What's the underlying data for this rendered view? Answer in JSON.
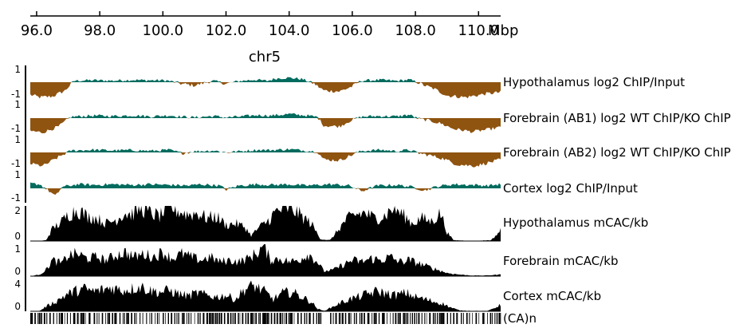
{
  "chart_data": {
    "type": "area",
    "chromosome": "chr5",
    "axis_unit": "Mbp",
    "xlim": [
      95.8,
      110.7
    ],
    "ticks": [
      {
        "value": 96.0,
        "label": "96.0"
      },
      {
        "value": 98.0,
        "label": "98.0"
      },
      {
        "value": 100.0,
        "label": "100.0"
      },
      {
        "value": 102.0,
        "label": "102.0"
      },
      {
        "value": 104.0,
        "label": "104.0"
      },
      {
        "value": 106.0,
        "label": "106.0"
      },
      {
        "value": 108.0,
        "label": "108.0"
      },
      {
        "value": 110.0,
        "label": "110.0"
      }
    ],
    "colors": {
      "positive": "#006b5e",
      "negative": "#8f5410",
      "mcac": "#000000",
      "ca": "#000000"
    },
    "log_tracks": [
      {
        "name": "Hypothalamus log2 ChIP/Input",
        "ylim": [
          -1,
          1
        ],
        "ymax_label": "1",
        "ymin_label": "-1",
        "points": [
          [
            95.8,
            -0.75
          ],
          [
            96.1,
            -0.9
          ],
          [
            96.5,
            -0.85
          ],
          [
            96.9,
            -0.5
          ],
          [
            97.2,
            0.12
          ],
          [
            97.8,
            0.15
          ],
          [
            98.4,
            0.12
          ],
          [
            99.0,
            0.18
          ],
          [
            99.5,
            0.15
          ],
          [
            100.1,
            0.14
          ],
          [
            100.6,
            -0.1
          ],
          [
            101.0,
            -0.2
          ],
          [
            101.6,
            0.1
          ],
          [
            102.0,
            -0.1
          ],
          [
            102.4,
            0.08
          ],
          [
            102.9,
            0.2
          ],
          [
            103.3,
            0.1
          ],
          [
            103.6,
            0.3
          ],
          [
            104.0,
            0.35
          ],
          [
            104.4,
            0.25
          ],
          [
            104.8,
            -0.1
          ],
          [
            105.1,
            -0.5
          ],
          [
            105.6,
            -0.55
          ],
          [
            106.0,
            -0.25
          ],
          [
            106.3,
            0.12
          ],
          [
            106.9,
            0.18
          ],
          [
            107.4,
            0.1
          ],
          [
            107.8,
            0.2
          ],
          [
            108.0,
            0.05
          ],
          [
            108.3,
            -0.2
          ],
          [
            108.6,
            -0.4
          ],
          [
            109.0,
            -0.8
          ],
          [
            109.6,
            -0.9
          ],
          [
            110.2,
            -0.7
          ],
          [
            110.7,
            -0.6
          ]
        ]
      },
      {
        "name": "Forebrain (AB1) log2 WT ChIP/KO ChIP",
        "ylim": [
          -1,
          1
        ],
        "ymax_label": "1",
        "ymin_label": "-1",
        "points": [
          [
            95.8,
            -0.85
          ],
          [
            96.2,
            -0.95
          ],
          [
            96.7,
            -0.55
          ],
          [
            97.1,
            0.1
          ],
          [
            97.8,
            0.18
          ],
          [
            98.4,
            0.15
          ],
          [
            99.1,
            0.2
          ],
          [
            99.6,
            0.12
          ],
          [
            100.2,
            0.2
          ],
          [
            100.6,
            0.1
          ],
          [
            101.0,
            0.05
          ],
          [
            101.6,
            0.15
          ],
          [
            102.0,
            0.05
          ],
          [
            102.5,
            0.12
          ],
          [
            103.0,
            0.22
          ],
          [
            103.4,
            0.18
          ],
          [
            104.0,
            0.3
          ],
          [
            104.5,
            0.2
          ],
          [
            104.9,
            0.08
          ],
          [
            105.1,
            -0.5
          ],
          [
            105.6,
            -0.55
          ],
          [
            105.9,
            -0.2
          ],
          [
            106.3,
            0.1
          ],
          [
            106.8,
            0.15
          ],
          [
            107.4,
            0.12
          ],
          [
            107.8,
            0.25
          ],
          [
            108.1,
            -0.05
          ],
          [
            108.4,
            -0.15
          ],
          [
            108.8,
            -0.35
          ],
          [
            109.2,
            -0.7
          ],
          [
            109.8,
            -0.9
          ],
          [
            110.3,
            -0.75
          ],
          [
            110.7,
            -0.6
          ]
        ]
      },
      {
        "name": "Forebrain (AB2) log2 WT ChIP/KO ChIP",
        "ylim": [
          -1,
          1
        ],
        "ymax_label": "1",
        "ymin_label": "-1",
        "points": [
          [
            95.8,
            -0.7
          ],
          [
            96.2,
            -0.85
          ],
          [
            96.6,
            -0.4
          ],
          [
            97.1,
            0.15
          ],
          [
            97.8,
            0.2
          ],
          [
            98.4,
            0.15
          ],
          [
            99.0,
            0.18
          ],
          [
            99.6,
            0.12
          ],
          [
            100.2,
            0.2
          ],
          [
            100.6,
            -0.05
          ],
          [
            101.0,
            0.08
          ],
          [
            101.6,
            0.15
          ],
          [
            102.0,
            0.0
          ],
          [
            102.5,
            0.1
          ],
          [
            103.0,
            0.2
          ],
          [
            103.4,
            0.18
          ],
          [
            104.0,
            0.25
          ],
          [
            104.5,
            0.15
          ],
          [
            104.9,
            0.05
          ],
          [
            105.1,
            -0.45
          ],
          [
            105.6,
            -0.5
          ],
          [
            106.0,
            -0.15
          ],
          [
            106.3,
            0.12
          ],
          [
            106.9,
            0.2
          ],
          [
            107.4,
            0.1
          ],
          [
            107.8,
            0.2
          ],
          [
            108.1,
            -0.05
          ],
          [
            108.5,
            -0.2
          ],
          [
            108.9,
            -0.4
          ],
          [
            109.3,
            -0.75
          ],
          [
            109.9,
            -0.85
          ],
          [
            110.4,
            -0.6
          ],
          [
            110.7,
            -0.45
          ]
        ]
      },
      {
        "name": "Cortex log2 ChIP/Input",
        "ylim": [
          -1,
          1
        ],
        "ymax_label": "1",
        "ymin_label": "-1",
        "points": [
          [
            95.8,
            0.35
          ],
          [
            96.1,
            0.3
          ],
          [
            96.4,
            -0.2
          ],
          [
            96.6,
            -0.55
          ],
          [
            96.8,
            0.1
          ],
          [
            97.3,
            0.3
          ],
          [
            97.8,
            0.25
          ],
          [
            98.4,
            0.3
          ],
          [
            99.0,
            0.25
          ],
          [
            99.6,
            0.3
          ],
          [
            100.2,
            0.25
          ],
          [
            100.8,
            0.2
          ],
          [
            101.2,
            0.3
          ],
          [
            101.8,
            0.2
          ],
          [
            102.0,
            -0.1
          ],
          [
            102.4,
            0.2
          ],
          [
            103.0,
            0.3
          ],
          [
            103.5,
            0.25
          ],
          [
            104.0,
            0.3
          ],
          [
            104.5,
            0.2
          ],
          [
            104.9,
            0.25
          ],
          [
            105.3,
            0.3
          ],
          [
            105.9,
            0.2
          ],
          [
            106.3,
            -0.2
          ],
          [
            106.8,
            0.2
          ],
          [
            107.4,
            0.25
          ],
          [
            107.9,
            0.1
          ],
          [
            108.3,
            -0.15
          ],
          [
            108.7,
            0.15
          ],
          [
            109.2,
            0.3
          ],
          [
            109.8,
            0.25
          ],
          [
            110.3,
            0.2
          ],
          [
            110.7,
            0.3
          ]
        ]
      }
    ],
    "mcac_tracks": [
      {
        "name": "Hypothalamus mCAC/kb",
        "ylim": [
          0,
          2
        ],
        "ymax_label": "2",
        "ymin_label": "0",
        "points": [
          [
            95.8,
            0.0
          ],
          [
            96.1,
            0.0
          ],
          [
            96.3,
            0.05
          ],
          [
            96.5,
            0.7
          ],
          [
            96.8,
            1.1
          ],
          [
            97.0,
            1.5
          ],
          [
            97.3,
            1.8
          ],
          [
            97.6,
            1.4
          ],
          [
            97.9,
            1.3
          ],
          [
            98.2,
            1.0
          ],
          [
            98.5,
            1.2
          ],
          [
            98.8,
            1.6
          ],
          [
            99.0,
            1.5
          ],
          [
            99.3,
            1.9
          ],
          [
            99.6,
            1.6
          ],
          [
            99.9,
            1.4
          ],
          [
            100.2,
            2.0
          ],
          [
            100.5,
            1.7
          ],
          [
            100.8,
            1.5
          ],
          [
            101.1,
            1.6
          ],
          [
            101.4,
            1.3
          ],
          [
            101.7,
            1.4
          ],
          [
            102.0,
            0.9
          ],
          [
            102.3,
            1.0
          ],
          [
            102.6,
            0.8
          ],
          [
            102.8,
            0.3
          ],
          [
            103.0,
            0.7
          ],
          [
            103.3,
            1.1
          ],
          [
            103.6,
            1.7
          ],
          [
            103.9,
            1.9
          ],
          [
            104.2,
            1.7
          ],
          [
            104.4,
            1.4
          ],
          [
            104.7,
            1.0
          ],
          [
            104.9,
            0.4
          ],
          [
            105.0,
            0.1
          ],
          [
            105.3,
            0.05
          ],
          [
            105.5,
            0.5
          ],
          [
            105.8,
            1.2
          ],
          [
            106.1,
            1.5
          ],
          [
            106.4,
            1.6
          ],
          [
            106.7,
            1.3
          ],
          [
            107.0,
            1.4
          ],
          [
            107.3,
            1.9
          ],
          [
            107.6,
            1.5
          ],
          [
            107.9,
            1.0
          ],
          [
            108.2,
            1.3
          ],
          [
            108.5,
            1.1
          ],
          [
            108.8,
            1.6
          ],
          [
            109.0,
            0.5
          ],
          [
            109.2,
            0.05
          ],
          [
            109.6,
            0.02
          ],
          [
            110.0,
            0.02
          ],
          [
            110.4,
            0.05
          ],
          [
            110.7,
            0.6
          ]
        ]
      },
      {
        "name": "Forebrain mCAC/kb",
        "ylim": [
          0,
          1
        ],
        "ymax_label": "1",
        "ymin_label": "0",
        "points": [
          [
            95.8,
            0.0
          ],
          [
            96.1,
            0.05
          ],
          [
            96.3,
            0.2
          ],
          [
            96.5,
            0.5
          ],
          [
            96.8,
            0.4
          ],
          [
            97.0,
            0.65
          ],
          [
            97.3,
            0.7
          ],
          [
            97.6,
            0.55
          ],
          [
            97.9,
            0.6
          ],
          [
            98.2,
            0.5
          ],
          [
            98.5,
            0.65
          ],
          [
            98.8,
            0.75
          ],
          [
            99.1,
            0.6
          ],
          [
            99.4,
            0.7
          ],
          [
            99.7,
            0.6
          ],
          [
            100.0,
            0.75
          ],
          [
            100.3,
            0.55
          ],
          [
            100.6,
            0.7
          ],
          [
            100.9,
            0.6
          ],
          [
            101.2,
            0.5
          ],
          [
            101.5,
            0.6
          ],
          [
            101.8,
            0.45
          ],
          [
            102.1,
            0.5
          ],
          [
            102.4,
            0.45
          ],
          [
            102.7,
            0.55
          ],
          [
            103.0,
            0.75
          ],
          [
            103.2,
            0.95
          ],
          [
            103.4,
            0.5
          ],
          [
            103.7,
            0.55
          ],
          [
            104.0,
            0.45
          ],
          [
            104.3,
            0.5
          ],
          [
            104.6,
            0.7
          ],
          [
            104.9,
            0.45
          ],
          [
            105.1,
            0.15
          ],
          [
            105.4,
            0.2
          ],
          [
            105.7,
            0.35
          ],
          [
            106.0,
            0.5
          ],
          [
            106.3,
            0.45
          ],
          [
            106.6,
            0.55
          ],
          [
            106.9,
            0.5
          ],
          [
            107.2,
            0.6
          ],
          [
            107.5,
            0.45
          ],
          [
            107.8,
            0.5
          ],
          [
            108.1,
            0.4
          ],
          [
            108.4,
            0.3
          ],
          [
            108.7,
            0.2
          ],
          [
            109.0,
            0.1
          ],
          [
            109.4,
            0.05
          ],
          [
            109.8,
            0.02
          ],
          [
            110.2,
            0.02
          ],
          [
            110.7,
            0.05
          ]
        ]
      },
      {
        "name": "Cortex mCAC/kb",
        "ylim": [
          0,
          4
        ],
        "ymax_label": "4",
        "ymin_label": "0",
        "points": [
          [
            95.8,
            0.0
          ],
          [
            96.1,
            0.05
          ],
          [
            96.3,
            0.6
          ],
          [
            96.6,
            1.2
          ],
          [
            96.9,
            2.0
          ],
          [
            97.2,
            2.5
          ],
          [
            97.5,
            2.8
          ],
          [
            97.8,
            2.5
          ],
          [
            98.1,
            2.7
          ],
          [
            98.4,
            3.0
          ],
          [
            98.7,
            2.6
          ],
          [
            99.0,
            2.8
          ],
          [
            99.3,
            3.1
          ],
          [
            99.6,
            2.6
          ],
          [
            99.9,
            2.4
          ],
          [
            100.2,
            2.6
          ],
          [
            100.5,
            2.2
          ],
          [
            100.8,
            1.9
          ],
          [
            101.1,
            2.3
          ],
          [
            101.4,
            2.0
          ],
          [
            101.7,
            1.8
          ],
          [
            102.0,
            2.0
          ],
          [
            102.3,
            1.5
          ],
          [
            102.6,
            2.8
          ],
          [
            102.9,
            3.2
          ],
          [
            103.2,
            2.5
          ],
          [
            103.5,
            1.5
          ],
          [
            103.8,
            2.3
          ],
          [
            104.1,
            2.4
          ],
          [
            104.4,
            1.8
          ],
          [
            104.7,
            1.2
          ],
          [
            104.9,
            0.3
          ],
          [
            105.1,
            0.05
          ],
          [
            105.3,
            0.4
          ],
          [
            105.6,
            1.0
          ],
          [
            105.9,
            1.5
          ],
          [
            106.2,
            1.8
          ],
          [
            106.5,
            2.2
          ],
          [
            106.8,
            2.5
          ],
          [
            107.1,
            2.2
          ],
          [
            107.4,
            2.0
          ],
          [
            107.7,
            2.3
          ],
          [
            108.0,
            1.8
          ],
          [
            108.3,
            1.5
          ],
          [
            108.6,
            1.2
          ],
          [
            108.9,
            0.9
          ],
          [
            109.1,
            0.5
          ],
          [
            109.4,
            0.1
          ],
          [
            109.8,
            0.05
          ],
          [
            110.3,
            0.05
          ],
          [
            110.7,
            0.8
          ]
        ]
      }
    ],
    "ca_track": {
      "name": "(CA)n"
    }
  }
}
